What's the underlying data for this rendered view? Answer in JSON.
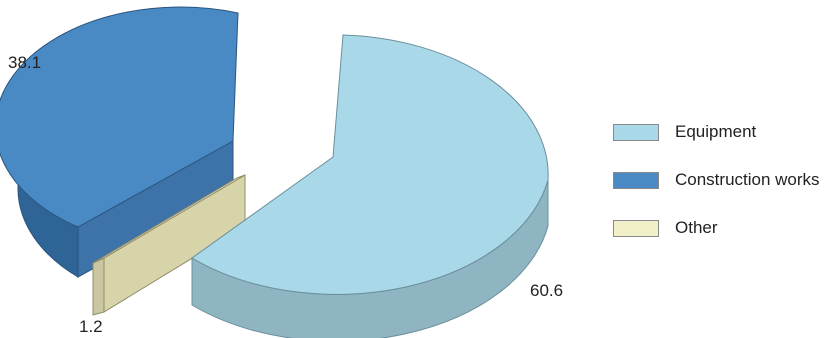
{
  "chart_data": {
    "type": "pie",
    "categories": [
      "Equipment",
      "Construction works",
      "Other"
    ],
    "values": [
      60.6,
      38.1,
      1.2
    ],
    "colors": {
      "Equipment": "#a9d8e8",
      "Construction works": "#4a8ac4",
      "Other": "#f2f0c8"
    },
    "exploded": true,
    "three_d": true,
    "legend_position": "right",
    "title": ""
  },
  "legend": {
    "items": [
      {
        "label": "Equipment",
        "color": "#a9d8e8"
      },
      {
        "label": "Construction works",
        "color": "#4a8ac4"
      },
      {
        "label": "Other",
        "color": "#f2f0c8"
      }
    ]
  },
  "labels": {
    "equipment_value": "60.6",
    "construction_value": "38.1",
    "other_value": "1.2"
  }
}
